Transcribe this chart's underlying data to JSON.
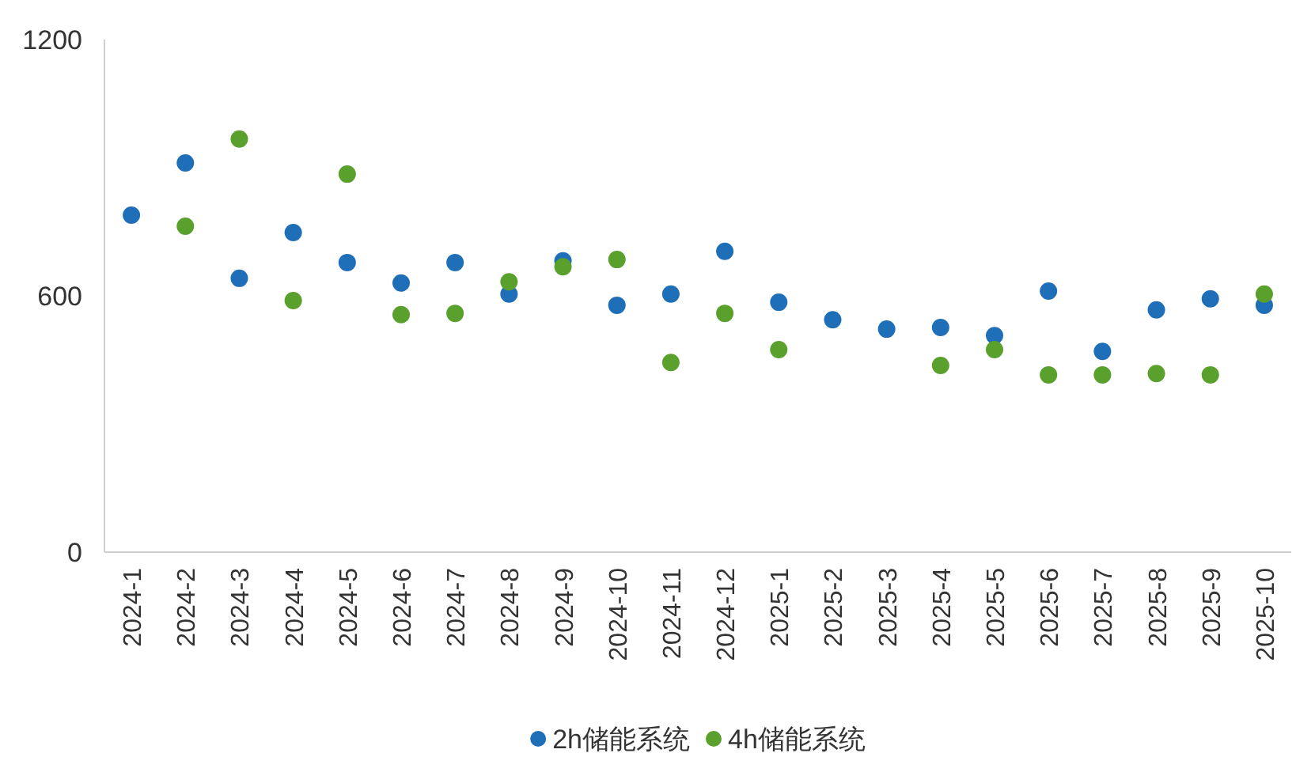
{
  "chart_data": {
    "type": "scatter",
    "categories": [
      "2024-1",
      "2024-2",
      "2024-3",
      "2024-4",
      "2024-5",
      "2024-6",
      "2024-7",
      "2024-8",
      "2024-9",
      "2024-10",
      "2024-11",
      "2024-12",
      "2025-1",
      "2025-2",
      "2025-3",
      "2025-4",
      "2025-5",
      "2025-6",
      "2025-7",
      "2025-8",
      "2025-9",
      "2025-10"
    ],
    "series": [
      {
        "name": "2h储能系统",
        "color": "#1f6fb8",
        "values": [
          789,
          911,
          641,
          748,
          678,
          630,
          678,
          604,
          682,
          578,
          604,
          704,
          585,
          544,
          522,
          526,
          507,
          611,
          470,
          567,
          593,
          578
        ]
      },
      {
        "name": "4h储能系统",
        "color": "#5aa02c",
        "values": [
          null,
          763,
          967,
          589,
          885,
          556,
          559,
          633,
          668,
          685,
          444,
          559,
          474,
          null,
          null,
          437,
          474,
          415,
          415,
          418,
          415,
          604
        ]
      }
    ],
    "ylim": [
      0,
      1200
    ],
    "yticks": [
      0,
      600,
      1200
    ],
    "grid": false,
    "legend": "bottom",
    "marker": "circle"
  }
}
